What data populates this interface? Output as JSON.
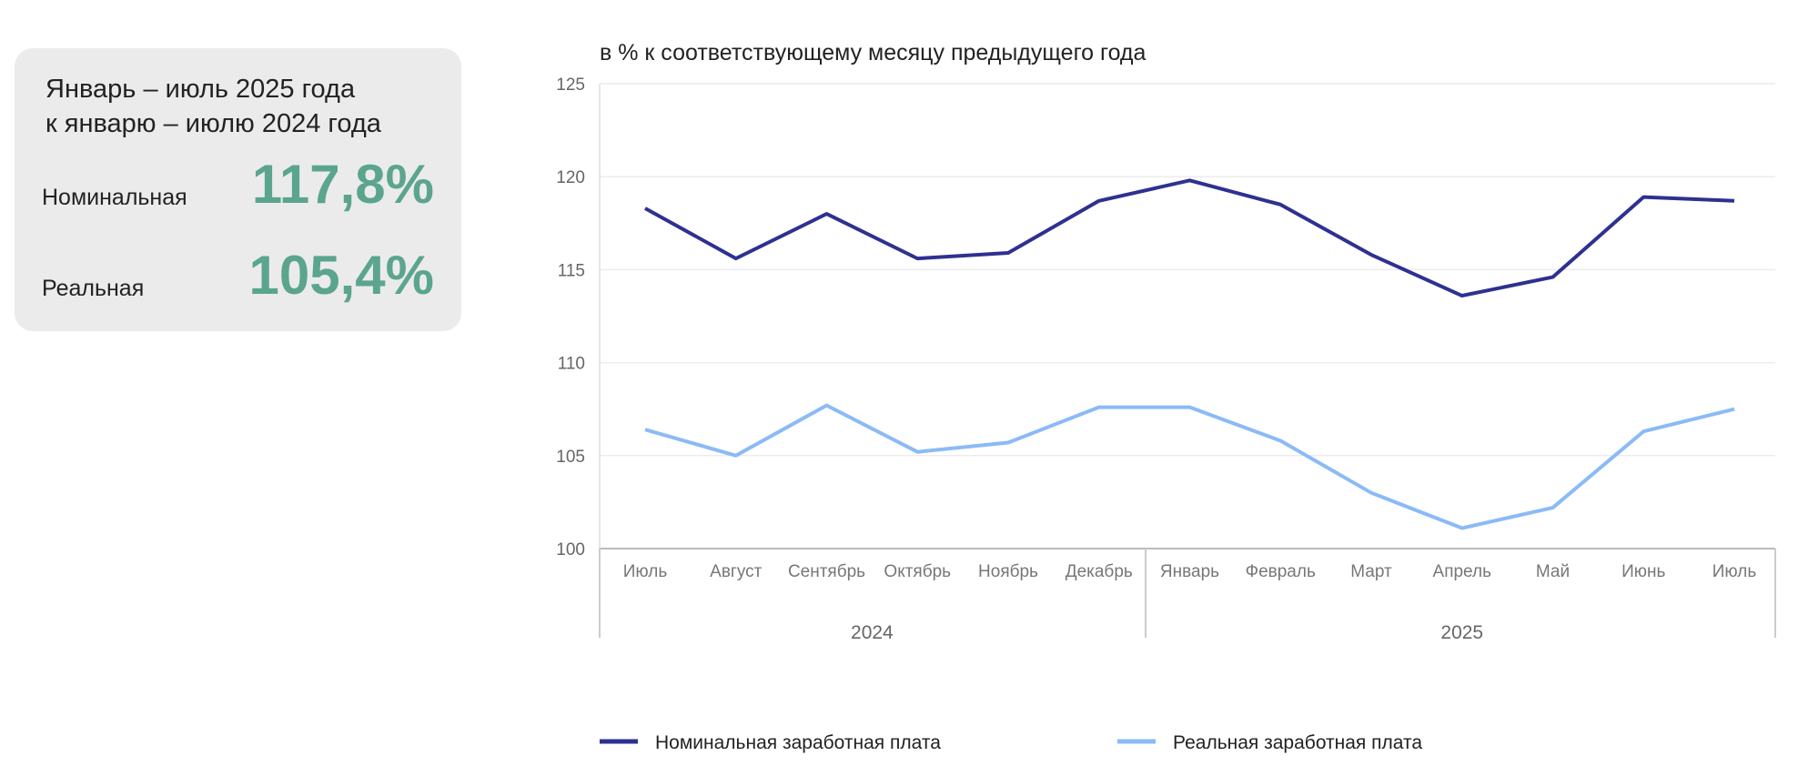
{
  "card": {
    "title_line1": "Январь – июль 2025 года",
    "title_line2": "к январю – июлю 2024 года",
    "nominal_label": "Номинальная",
    "nominal_value": "117,8%",
    "real_label": "Реальная",
    "real_value": "105,4%"
  },
  "chart_data": {
    "type": "line",
    "title": "в % к соответствующему месяцу предыдущего года",
    "categories": [
      "Июль",
      "Август",
      "Сентябрь",
      "Октябрь",
      "Ноябрь",
      "Декабрь",
      "Январь",
      "Февраль",
      "Март",
      "Апрель",
      "Май",
      "Июнь",
      "Июль"
    ],
    "groups": [
      {
        "label": "2024",
        "from": 0,
        "to": 5
      },
      {
        "label": "2025",
        "from": 6,
        "to": 12
      }
    ],
    "ylim": [
      100,
      125
    ],
    "yticks": [
      "100",
      "105",
      "110",
      "115",
      "120",
      "125"
    ],
    "grid": true,
    "legend_position": "bottom",
    "series": [
      {
        "name": "Номинальная заработная плата",
        "color": "#2e3190",
        "values": [
          118.3,
          115.6,
          118.0,
          115.6,
          115.9,
          118.7,
          119.8,
          118.5,
          115.8,
          113.6,
          114.6,
          118.9,
          118.7
        ]
      },
      {
        "name": "Реальная заработная плата",
        "color": "#8bbaf6",
        "values": [
          106.4,
          105.0,
          107.7,
          105.2,
          105.7,
          107.6,
          107.6,
          105.8,
          103.0,
          101.1,
          102.2,
          106.3,
          107.5
        ]
      }
    ]
  }
}
